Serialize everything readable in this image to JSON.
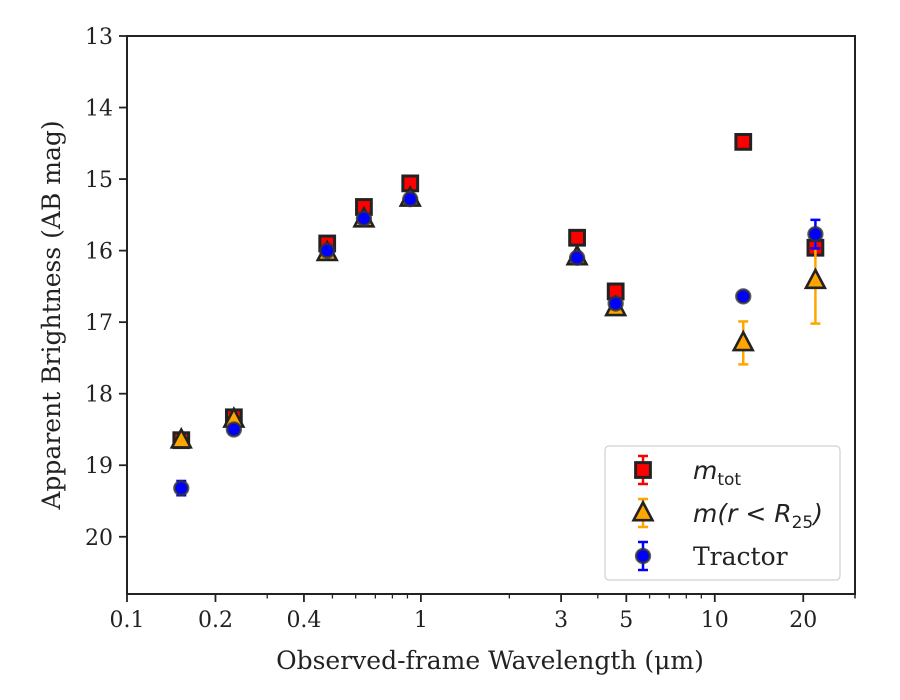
{
  "chart_data": {
    "type": "scatter",
    "title": "",
    "xlabel": "Observed-frame Wavelength (μm)",
    "ylabel": "Apparent Brightness (AB mag)",
    "xscale": "log",
    "xlim": [
      0.1,
      30
    ],
    "ylim": [
      20.8,
      13
    ],
    "y_inverted": true,
    "xticks": [
      0.1,
      0.2,
      0.4,
      1,
      3,
      5,
      10,
      20
    ],
    "xtick_labels": [
      "0.1",
      "0.2",
      "0.4",
      "1",
      "3",
      "5",
      "10",
      "20"
    ],
    "yticks": [
      13,
      14,
      15,
      16,
      17,
      18,
      19,
      20
    ],
    "ytick_labels": [
      "13",
      "14",
      "15",
      "16",
      "17",
      "18",
      "19",
      "20"
    ],
    "grid": false,
    "legend_position": "lower-right",
    "series": [
      {
        "name": "m_tot",
        "legend_main": "m",
        "legend_sub": "tot",
        "marker": "square",
        "color": "#ff0000",
        "edge_color": "#222222",
        "error_color": "#ff0000",
        "points": [
          {
            "x": 0.153,
            "y": 18.65,
            "err": 0.05
          },
          {
            "x": 0.231,
            "y": 18.33,
            "err": 0.05
          },
          {
            "x": 0.48,
            "y": 15.9,
            "err": 0.03
          },
          {
            "x": 0.64,
            "y": 15.39,
            "err": 0.03
          },
          {
            "x": 0.92,
            "y": 15.06,
            "err": 0.03
          },
          {
            "x": 3.4,
            "y": 15.82,
            "err": 0.03
          },
          {
            "x": 4.6,
            "y": 16.57,
            "err": 0.03
          },
          {
            "x": 12.5,
            "y": 14.48,
            "err": 0.03
          },
          {
            "x": 22.0,
            "y": 15.96,
            "err": 0.05
          }
        ]
      },
      {
        "name": "m(r < R25)",
        "legend_main": "m(r < R",
        "legend_sub": "25",
        "legend_close": ")",
        "marker": "triangle",
        "color": "#ffa500",
        "edge_color": "#222222",
        "error_color": "#ffa500",
        "points": [
          {
            "x": 0.153,
            "y": 18.65,
            "err": 0.05
          },
          {
            "x": 0.231,
            "y": 18.36,
            "err": 0.05
          },
          {
            "x": 0.48,
            "y": 16.03,
            "err": 0.03
          },
          {
            "x": 0.64,
            "y": 15.56,
            "err": 0.03
          },
          {
            "x": 0.92,
            "y": 15.27,
            "err": 0.03
          },
          {
            "x": 3.4,
            "y": 16.09,
            "err": 0.03
          },
          {
            "x": 4.6,
            "y": 16.8,
            "err": 0.03
          },
          {
            "x": 12.5,
            "y": 17.29,
            "err": 0.3
          },
          {
            "x": 22.0,
            "y": 16.42,
            "err": 0.6
          }
        ]
      },
      {
        "name": "Tractor",
        "legend_main": "Tractor",
        "marker": "circle",
        "color": "#0000ff",
        "edge_color": "#333333",
        "error_color": "#0000ff",
        "points": [
          {
            "x": 0.153,
            "y": 19.32,
            "err": 0.1
          },
          {
            "x": 0.231,
            "y": 18.5,
            "err": 0.06
          },
          {
            "x": 0.48,
            "y": 16.0,
            "err": 0.03
          },
          {
            "x": 0.64,
            "y": 15.55,
            "err": 0.03
          },
          {
            "x": 0.92,
            "y": 15.28,
            "err": 0.03
          },
          {
            "x": 3.4,
            "y": 16.1,
            "err": 0.03
          },
          {
            "x": 4.6,
            "y": 16.74,
            "err": 0.03
          },
          {
            "x": 12.5,
            "y": 16.64,
            "err": 0.04
          },
          {
            "x": 22.0,
            "y": 15.77,
            "err": 0.2
          }
        ]
      }
    ]
  }
}
